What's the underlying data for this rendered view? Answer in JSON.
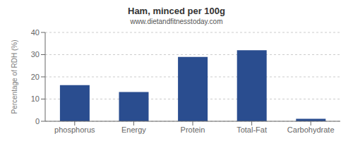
{
  "chart_data": {
    "type": "bar",
    "title": "Ham, minced per 100g",
    "subtitle": "www.dietandfitnesstoday.com",
    "ylabel": "Percentage of RDH (%)",
    "categories": [
      "phosphorus",
      "Energy",
      "Protein",
      "Total-Fat",
      "Carbohydrate"
    ],
    "values": [
      16.3,
      13.2,
      29.0,
      32.0,
      1.1
    ],
    "color": "#2a4d8f",
    "ylim": [
      0,
      40
    ],
    "yticks": [
      0,
      10,
      20,
      30,
      40
    ],
    "grid": true
  }
}
